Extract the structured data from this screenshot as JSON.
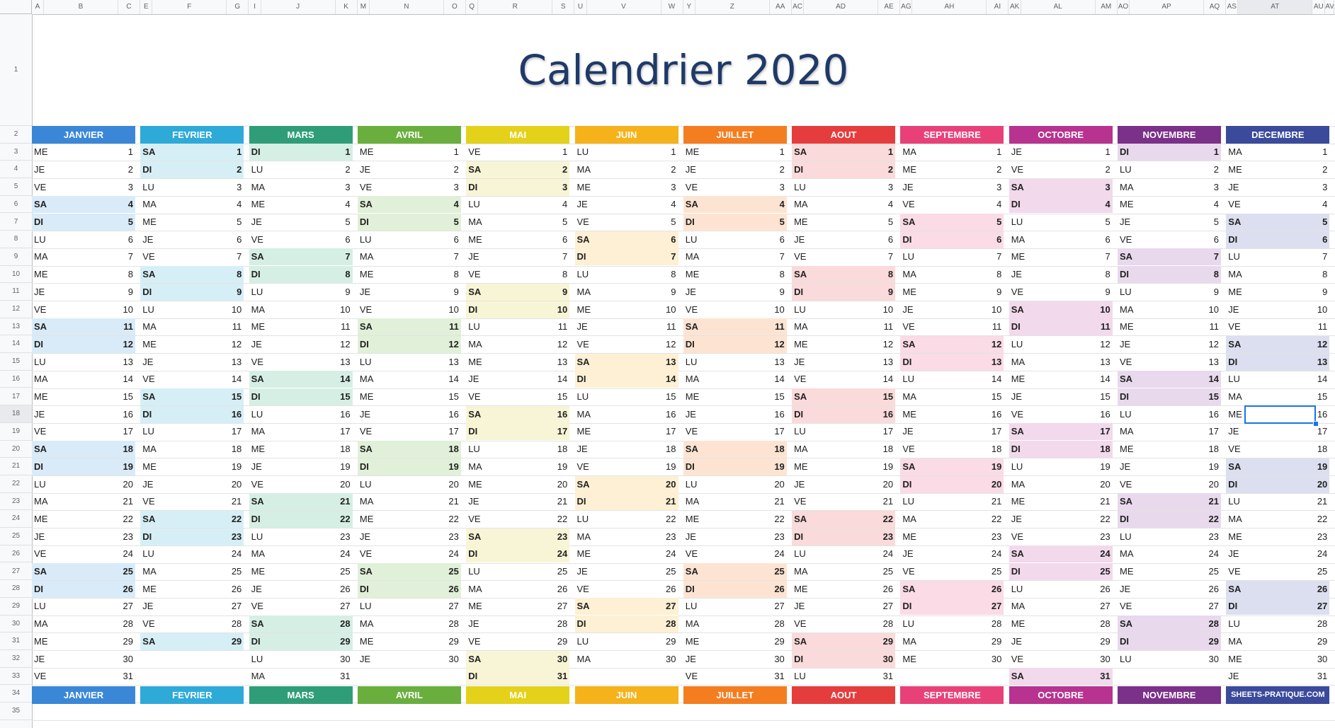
{
  "title": "Calendrier 2020",
  "column_headers": [
    "A",
    "B",
    "C",
    "E",
    "F",
    "G",
    "I",
    "J",
    "K",
    "M",
    "N",
    "O",
    "Q",
    "R",
    "S",
    "U",
    "V",
    "W",
    "Y",
    "Z",
    "AA",
    "AC",
    "AD",
    "AE",
    "AG",
    "AH",
    "AI",
    "AK",
    "AL",
    "AM",
    "AO",
    "AP",
    "AQ",
    "AS",
    "AT",
    "AU",
    "AV"
  ],
  "row_headers": [
    "1",
    "2",
    "3",
    "4",
    "5",
    "6",
    "7",
    "8",
    "9",
    "10",
    "11",
    "12",
    "13",
    "14",
    "15",
    "16",
    "17",
    "18",
    "19",
    "20",
    "21",
    "22",
    "23",
    "24",
    "25",
    "26",
    "27",
    "28",
    "29",
    "30",
    "31",
    "32",
    "33",
    "34",
    "35"
  ],
  "selected_column": "AT",
  "selected_row": "18",
  "months": [
    {
      "name": "JANVIER",
      "color": "#3a87d8",
      "weekend": "#d9ebf8",
      "first_day": "ME",
      "length": 31
    },
    {
      "name": "FEVRIER",
      "color": "#2eaad8",
      "weekend": "#d6eff6",
      "first_day": "SA",
      "length": 29
    },
    {
      "name": "MARS",
      "color": "#2f9e78",
      "weekend": "#d6efe5",
      "first_day": "DI",
      "length": 31
    },
    {
      "name": "AVRIL",
      "color": "#6aaf3e",
      "weekend": "#e1f0d8",
      "first_day": "ME",
      "length": 30
    },
    {
      "name": "MAI",
      "color": "#e3d11a",
      "weekend": "#f8f5d6",
      "first_day": "VE",
      "length": 31
    },
    {
      "name": "JUIN",
      "color": "#f5b21a",
      "weekend": "#fdf0d4",
      "first_day": "LU",
      "length": 30
    },
    {
      "name": "JUILLET",
      "color": "#f47d20",
      "weekend": "#fde4d2",
      "first_day": "ME",
      "length": 31
    },
    {
      "name": "AOUT",
      "color": "#e53d3d",
      "weekend": "#fadada",
      "first_day": "SA",
      "length": 31
    },
    {
      "name": "SEPTEMBRE",
      "color": "#e8417a",
      "weekend": "#fadbe6",
      "first_day": "MA",
      "length": 30
    },
    {
      "name": "OCTOBRE",
      "color": "#b7338f",
      "weekend": "#f2d9ec",
      "first_day": "JE",
      "length": 31
    },
    {
      "name": "NOVEMBRE",
      "color": "#7b3089",
      "weekend": "#e8d9ed",
      "first_day": "DI",
      "length": 30
    },
    {
      "name": "DECEMBRE",
      "color": "#3b4a9b",
      "weekend": "#dcdfef",
      "first_day": "MA",
      "length": 31
    }
  ],
  "day_abbreviations": [
    "LU",
    "MA",
    "ME",
    "JE",
    "VE",
    "SA",
    "DI"
  ],
  "footer_last_label": "SHEETS-PRATIQUE.COM"
}
